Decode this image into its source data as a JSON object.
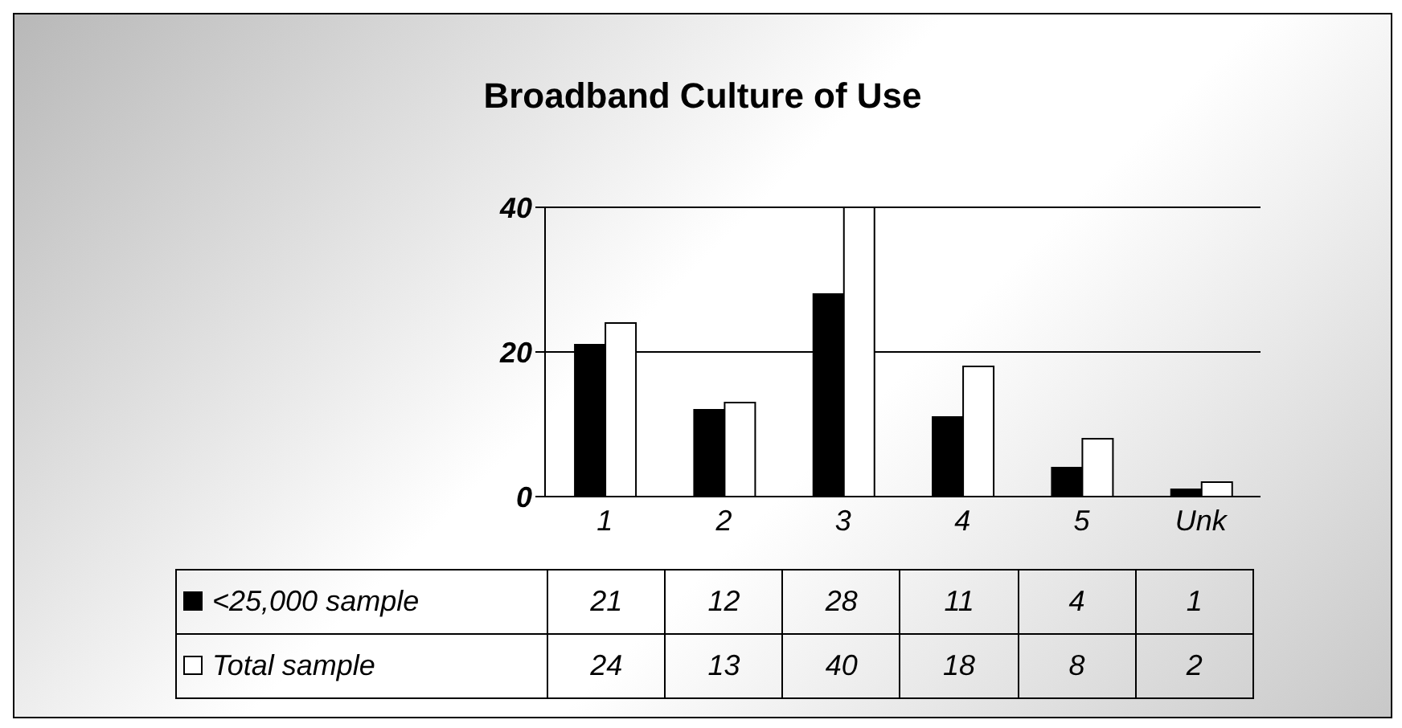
{
  "chart_data": {
    "type": "bar",
    "title": "Broadband Culture of Use",
    "categories": [
      "1",
      "2",
      "3",
      "4",
      "5",
      "Unk"
    ],
    "series": [
      {
        "name": "<25,000 sample",
        "color": "#000000",
        "values": [
          21,
          12,
          28,
          11,
          4,
          1
        ]
      },
      {
        "name": "Total sample",
        "color": "#ffffff",
        "values": [
          24,
          13,
          40,
          18,
          8,
          2
        ]
      }
    ],
    "ylim": [
      0,
      40
    ],
    "yticks": [
      0,
      20,
      40
    ],
    "grid": "y",
    "legend": "bottom",
    "data_labels": true
  }
}
